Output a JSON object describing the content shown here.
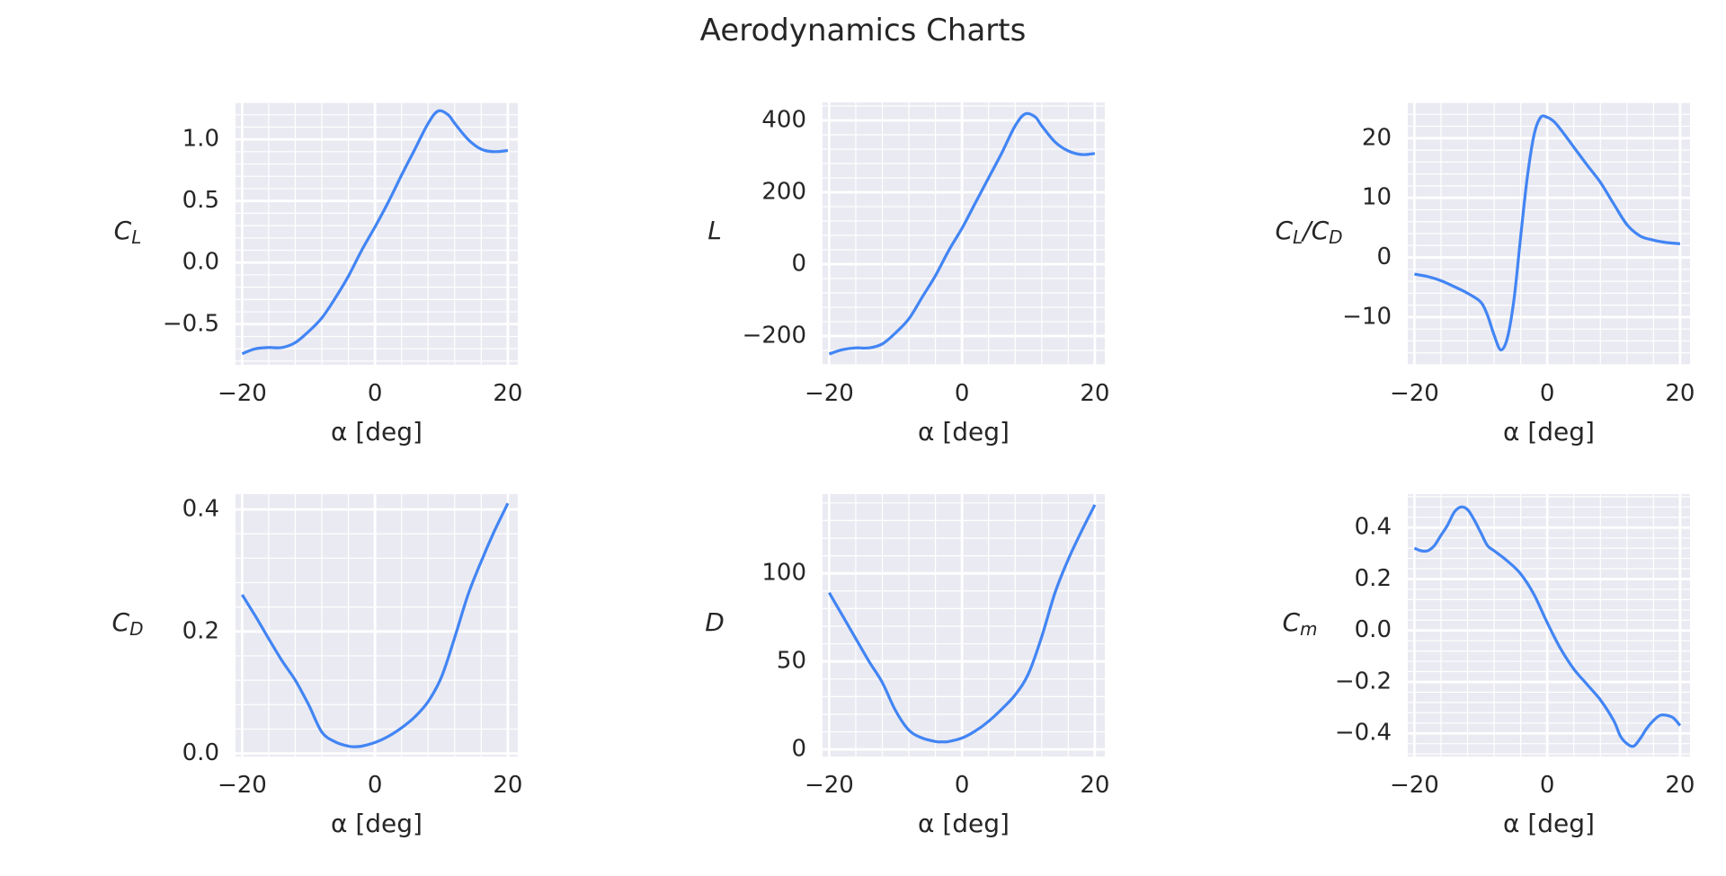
{
  "figure": {
    "title": "Aerodynamics Charts",
    "colors": {
      "background": "#eaeaf2",
      "grid": "#ffffff",
      "line": "#4285f4",
      "text": "#262626"
    }
  },
  "chart_data": [
    {
      "type": "line",
      "xlabel": "α [deg]",
      "ylabel": "C_L",
      "xlim": [
        -21,
        21.5
      ],
      "ylim": [
        -0.83,
        1.3
      ],
      "xticks": [
        -20,
        0,
        20
      ],
      "xtick_labels": [
        "−20",
        "0",
        "20"
      ],
      "yticks": [
        -0.5,
        0.0,
        0.5,
        1.0
      ],
      "ytick_labels": [
        "−0.5",
        "0.0",
        "0.5",
        "1.0"
      ],
      "grid": true,
      "series": [
        {
          "x": [
            -20,
            -18,
            -16,
            -14,
            -12,
            -10,
            -8,
            -6,
            -4,
            -2,
            0,
            2,
            4,
            6,
            8,
            9.5,
            11,
            12,
            14,
            16,
            18,
            20
          ],
          "y": [
            -0.74,
            -0.7,
            -0.69,
            -0.69,
            -0.65,
            -0.56,
            -0.45,
            -0.29,
            -0.11,
            0.1,
            0.29,
            0.49,
            0.71,
            0.92,
            1.13,
            1.23,
            1.2,
            1.13,
            1.0,
            0.92,
            0.9,
            0.91
          ]
        }
      ]
    },
    {
      "type": "line",
      "xlabel": "α [deg]",
      "ylabel": "L",
      "xlim": [
        -21,
        21.5
      ],
      "ylim": [
        -280,
        450
      ],
      "xticks": [
        -20,
        0,
        20
      ],
      "xtick_labels": [
        "−20",
        "0",
        "20"
      ],
      "yticks": [
        -200,
        0,
        200,
        400
      ],
      "ytick_labels": [
        "−200",
        "0",
        "200",
        "400"
      ],
      "grid": true,
      "series": [
        {
          "x": [
            -20,
            -18,
            -16,
            -14,
            -12,
            -10,
            -8,
            -6,
            -4,
            -2,
            0,
            2,
            4,
            6,
            8,
            9.5,
            11,
            12,
            14,
            16,
            18,
            20
          ],
          "y": [
            -250,
            -238,
            -233,
            -233,
            -222,
            -191,
            -152,
            -92,
            -32,
            38,
            100,
            170,
            240,
            310,
            385,
            418,
            410,
            385,
            340,
            315,
            305,
            308
          ]
        }
      ]
    },
    {
      "type": "line",
      "xlabel": "α [deg]",
      "ylabel": "C_L/C_D",
      "xlim": [
        -21,
        21.5
      ],
      "ylim": [
        -18,
        26
      ],
      "xticks": [
        -20,
        0,
        20
      ],
      "xtick_labels": [
        "−20",
        "0",
        "20"
      ],
      "yticks": [
        -10,
        0,
        10,
        20
      ],
      "ytick_labels": [
        "−10",
        "0",
        "10",
        "20"
      ],
      "grid": true,
      "series": [
        {
          "x": [
            -20,
            -18,
            -16,
            -14,
            -12,
            -10,
            -9,
            -8,
            -7,
            -6,
            -5,
            -4,
            -3,
            -2,
            -1,
            0,
            1,
            2,
            4,
            6,
            8,
            10,
            12,
            14,
            16,
            18,
            20
          ],
          "y": [
            -2.8,
            -3.2,
            -3.9,
            -4.9,
            -6.0,
            -7.5,
            -9.7,
            -13.0,
            -15.5,
            -13.5,
            -7.0,
            3.5,
            13.5,
            20.5,
            23.5,
            23.5,
            22.8,
            21.5,
            18.5,
            15.5,
            12.6,
            9.0,
            5.5,
            3.6,
            2.9,
            2.5,
            2.3
          ]
        }
      ]
    },
    {
      "type": "line",
      "xlabel": "α [deg]",
      "ylabel": "C_D",
      "xlim": [
        -21,
        21.5
      ],
      "ylim": [
        -0.005,
        0.425
      ],
      "xticks": [
        -20,
        0,
        20
      ],
      "xtick_labels": [
        "−20",
        "0",
        "20"
      ],
      "yticks": [
        0.0,
        0.2,
        0.4
      ],
      "ytick_labels": [
        "0.0",
        "0.2",
        "0.4"
      ],
      "grid": true,
      "series": [
        {
          "x": [
            -20,
            -18,
            -16,
            -14,
            -12,
            -10,
            -8,
            -6,
            -4,
            -3,
            -2,
            0,
            2,
            4,
            6,
            8,
            10,
            12,
            14,
            16,
            18,
            20
          ],
          "y": [
            0.26,
            0.225,
            0.188,
            0.152,
            0.12,
            0.08,
            0.035,
            0.019,
            0.012,
            0.011,
            0.012,
            0.018,
            0.028,
            0.042,
            0.06,
            0.085,
            0.125,
            0.19,
            0.26,
            0.315,
            0.365,
            0.41
          ]
        }
      ]
    },
    {
      "type": "line",
      "xlabel": "α [deg]",
      "ylabel": "D",
      "xlim": [
        -21,
        21.5
      ],
      "ylim": [
        -4,
        145
      ],
      "xticks": [
        -20,
        0,
        20
      ],
      "xtick_labels": [
        "−20",
        "0",
        "20"
      ],
      "yticks": [
        0,
        50,
        100
      ],
      "ytick_labels": [
        "0",
        "50",
        "100"
      ],
      "grid": true,
      "series": [
        {
          "x": [
            -20,
            -18,
            -16,
            -14,
            -12,
            -10,
            -8,
            -6,
            -4,
            -3,
            -2,
            0,
            2,
            4,
            6,
            8,
            10,
            12,
            14,
            16,
            18,
            20
          ],
          "y": [
            89,
            76,
            63,
            50,
            38,
            22,
            11,
            6.5,
            4.5,
            4.3,
            4.5,
            6.5,
            10.5,
            16,
            23,
            31,
            43,
            64,
            89,
            108,
            124,
            139
          ]
        }
      ]
    },
    {
      "type": "line",
      "xlabel": "α [deg]",
      "ylabel": "C_m",
      "xlim": [
        -21,
        21.5
      ],
      "ylim": [
        -0.49,
        0.53
      ],
      "xticks": [
        -20,
        0,
        20
      ],
      "xtick_labels": [
        "−20",
        "0",
        "20"
      ],
      "yticks": [
        -0.4,
        -0.2,
        0.0,
        0.2,
        0.4
      ],
      "ytick_labels": [
        "−0.4",
        "−0.2",
        "0.0",
        "0.2",
        "0.4"
      ],
      "grid": true,
      "series": [
        {
          "x": [
            -20,
            -19,
            -18,
            -17,
            -16,
            -15,
            -14,
            -13,
            -12,
            -11,
            -10,
            -9,
            -8,
            -6,
            -4,
            -2,
            0,
            2,
            4,
            6,
            8,
            10,
            11,
            12,
            13,
            14,
            15,
            16,
            17,
            18,
            19,
            20
          ],
          "y": [
            0.32,
            0.31,
            0.31,
            0.33,
            0.37,
            0.41,
            0.46,
            0.48,
            0.47,
            0.43,
            0.38,
            0.33,
            0.31,
            0.27,
            0.22,
            0.14,
            0.03,
            -0.07,
            -0.15,
            -0.21,
            -0.27,
            -0.35,
            -0.41,
            -0.44,
            -0.45,
            -0.42,
            -0.38,
            -0.35,
            -0.33,
            -0.33,
            -0.34,
            -0.37
          ]
        }
      ]
    }
  ]
}
